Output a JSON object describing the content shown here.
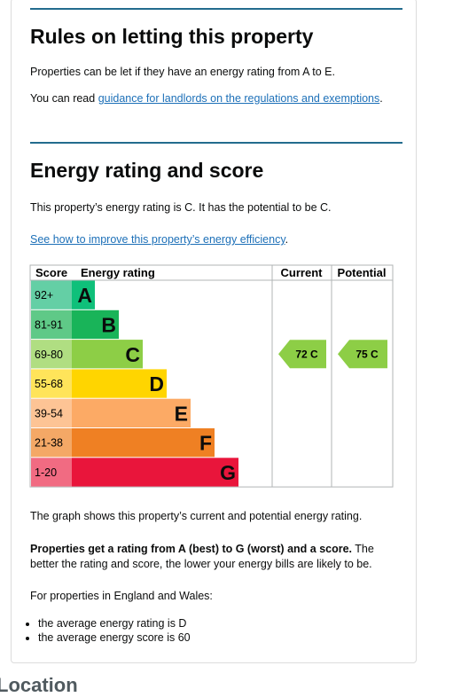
{
  "rules": {
    "title": "Rules on letting this property",
    "text": "Properties can be let if they have an energy rating from A to E.",
    "link_prefix": "You can read ",
    "link": "guidance for landlords on the regulations and exemptions",
    "link_suffix": "."
  },
  "rating": {
    "title": "Energy rating and score",
    "text": "This property’s energy rating is C. It has the potential to be C.",
    "link": "See how to improve this property’s energy efficiency",
    "link_suffix": ".",
    "table": {
      "headers": [
        "Score",
        "Energy rating",
        "Current",
        "Potential"
      ],
      "bands": [
        {
          "score": "92+",
          "letter": "A"
        },
        {
          "score": "81-91",
          "letter": "B"
        },
        {
          "score": "69-80",
          "letter": "C"
        },
        {
          "score": "55-68",
          "letter": "D"
        },
        {
          "score": "39-54",
          "letter": "E"
        },
        {
          "score": "21-38",
          "letter": "F"
        },
        {
          "score": "1-20",
          "letter": "G"
        }
      ],
      "current": "72 C",
      "potential": "75 C"
    },
    "graph_note": "The graph shows this property’s current and potential energy rating.",
    "bold": "Properties get a rating from A (best) to G (worst) and a score.",
    "bold_rest": " The better the rating and score, the lower your energy bills are likely to be.",
    "england": "For properties in England and Wales:",
    "bullets": [
      "the average energy rating is D",
      "the average energy score is 60"
    ]
  },
  "next_heading": "Location"
}
